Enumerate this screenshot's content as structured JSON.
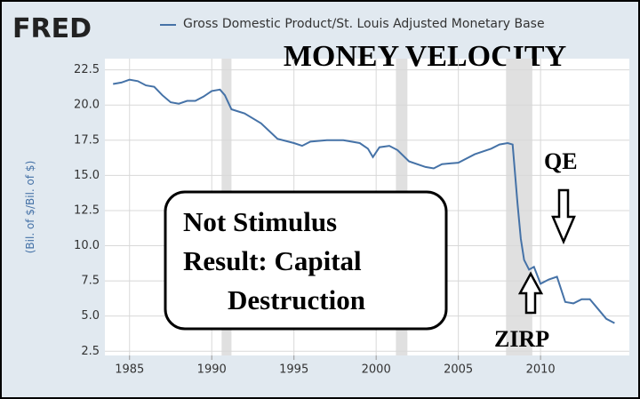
{
  "chart_data": {
    "type": "line",
    "logo": "FRED",
    "title": "MONEY VELOCITY",
    "ylabel": "(Bil. of $/Bil. of $)",
    "annotations": [
      "QE",
      "ZIRP"
    ],
    "note": [
      "Not Stimulus",
      "Result: Capital",
      "Destruction"
    ],
    "x": [
      1984.0,
      1984.5,
      1985.0,
      1985.5,
      1986.0,
      1986.5,
      1987.0,
      1987.5,
      1988.0,
      1988.5,
      1989.0,
      1989.5,
      1990.0,
      1990.5,
      1990.8,
      1991.2,
      1992.0,
      1993.0,
      1994.0,
      1995.0,
      1995.5,
      1996.0,
      1997.0,
      1998.0,
      1999.0,
      1999.5,
      1999.8,
      2000.2,
      2000.8,
      2001.3,
      2002.0,
      2003.0,
      2003.5,
      2004.0,
      2005.0,
      2006.0,
      2007.0,
      2007.5,
      2008.0,
      2008.3,
      2008.6,
      2008.8,
      2009.0,
      2009.3,
      2009.6,
      2010.0,
      2010.5,
      2011.0,
      2011.5,
      2012.0,
      2012.5,
      2013.0,
      2013.5,
      2014.0,
      2014.5
    ],
    "series": [
      {
        "name": "Gross Domestic Product/St. Louis Adjusted Monetary Base",
        "color": "#4572a7",
        "values": [
          21.5,
          21.6,
          21.8,
          21.7,
          21.4,
          21.3,
          20.7,
          20.2,
          20.1,
          20.3,
          20.3,
          20.6,
          21.0,
          21.1,
          20.7,
          19.7,
          19.4,
          18.7,
          17.6,
          17.3,
          17.1,
          17.4,
          17.5,
          17.5,
          17.3,
          16.9,
          16.3,
          17.0,
          17.1,
          16.8,
          16.0,
          15.6,
          15.5,
          15.8,
          15.9,
          16.5,
          16.9,
          17.2,
          17.3,
          17.2,
          13.0,
          10.5,
          9.0,
          8.3,
          8.5,
          7.3,
          7.6,
          7.8,
          6.0,
          5.9,
          6.2,
          6.2,
          5.5,
          4.8,
          4.5
        ]
      }
    ],
    "recessions": [
      [
        1990.6,
        1991.2
      ],
      [
        2001.2,
        2001.9
      ],
      [
        2007.9,
        2009.5
      ]
    ],
    "xlim": [
      1983.5,
      2015.4
    ],
    "xticks": [
      1985,
      1990,
      1995,
      2000,
      2005,
      2010
    ],
    "ylim": [
      2.2,
      23.3
    ],
    "yticks": [
      {
        "value": 2.5,
        "label": "2.5"
      },
      {
        "value": 5,
        "label": "5.0"
      },
      {
        "value": 7.5,
        "label": "7.5"
      },
      {
        "value": 10,
        "label": "10.0"
      },
      {
        "value": 12.5,
        "label": "12.5"
      },
      {
        "value": 15,
        "label": "15.0"
      },
      {
        "value": 17.5,
        "label": "17.5"
      },
      {
        "value": 20,
        "label": "20.0"
      },
      {
        "value": 22.5,
        "label": "22.5"
      }
    ],
    "grid": true
  }
}
